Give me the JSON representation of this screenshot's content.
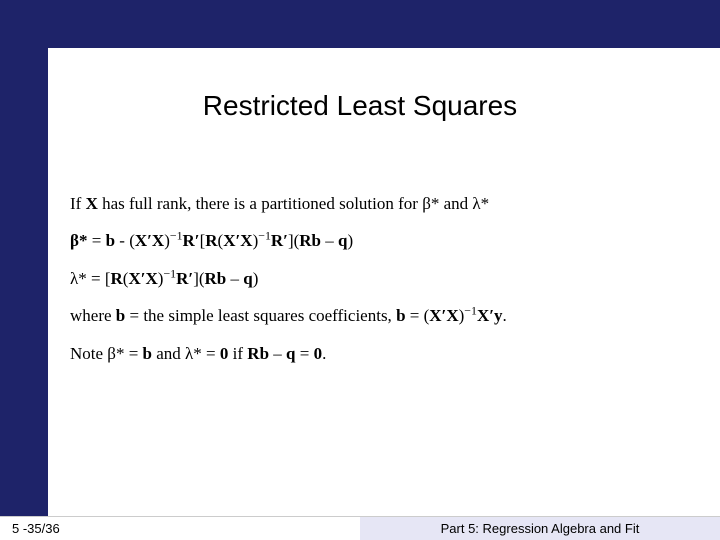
{
  "colors": {
    "accent": "#1e2369",
    "footer_right_bg": "#e6e6f5",
    "background": "#ffffff",
    "text": "#000000"
  },
  "slide": {
    "title": "Restricted Least Squares",
    "lines": {
      "l1_pre": "If ",
      "l1_X": "X",
      "l1_post": " has full rank, there is a partitioned solution for β* and λ*",
      "l2_lhs": "β*",
      "l2_eq": "  =  ",
      "l2_b": "b",
      "l2_mid1": " - (",
      "l2_XtX1": "X′X",
      "l2_mid2": ")",
      "l2_sup1": "−1",
      "l2_Rt1": "R′",
      "l2_mid3": "[",
      "l2_R1": "R",
      "l2_mid4": "(",
      "l2_XtX2": "X′X",
      "l2_mid5": ")",
      "l2_sup2": "−1",
      "l2_Rt2": "R′",
      "l2_mid6": "](",
      "l2_Rb": "Rb",
      "l2_mid7": " – ",
      "l2_q": "q",
      "l2_end": ")",
      "l3_lhs": "λ*",
      "l3_eq": "  = [",
      "l3_R": "R",
      "l3_mid1": "(",
      "l3_XtX": "X′X",
      "l3_mid2": ")",
      "l3_sup": "−1",
      "l3_Rt": "R′",
      "l3_mid3": "](",
      "l3_Rb": "Rb",
      "l3_mid4": " – ",
      "l3_q": "q",
      "l3_end": ")",
      "l4_pre": "where ",
      "l4_b1": "b",
      "l4_mid": " = the simple least squares coefficients, ",
      "l4_b2": "b",
      "l4_eq": " = (",
      "l4_XtX": "X′X",
      "l4_mid2": ")",
      "l4_sup": "−1",
      "l4_Xty": "X′y",
      "l4_end": ".",
      "l5_pre": "Note β*  =  ",
      "l5_b": "b",
      "l5_mid": " and λ*  =  ",
      "l5_zero": "0",
      "l5_mid2": " if ",
      "l5_Rb": "Rb",
      "l5_mid3": " – ",
      "l5_q": "q",
      "l5_mid4": " = ",
      "l5_zero2": "0",
      "l5_end": "."
    }
  },
  "footer": {
    "left": "5 -35/36",
    "right": "Part 5: Regression Algebra and Fit"
  }
}
